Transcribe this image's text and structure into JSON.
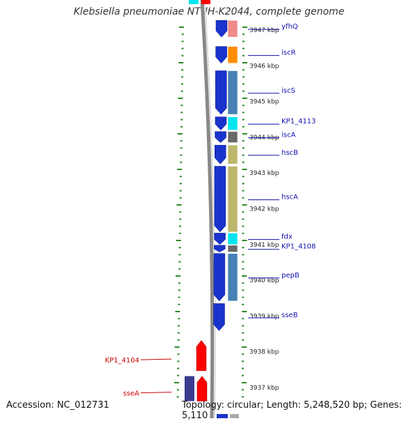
{
  "title": "Klebsiella pneumoniae NTUH-K2044, complete genome",
  "footer": {
    "accession": "Accession: NC_012731",
    "summary": "Topology: circular; Length: 5,248,520 bp; Genes: 5,110"
  },
  "colors": {
    "blue_gene": "#1a33cc",
    "red_gene": "#ff0000",
    "gene_label_blue": "#1010b0",
    "gene_label_red": "#cc0000",
    "tick": "#2a8a2a",
    "backbone": "#888888"
  },
  "scale": {
    "unit": "kbp",
    "ticks": [
      {
        "kbp": 3947,
        "label": "3947 kbp"
      },
      {
        "kbp": 3946,
        "label": "3946 kbp"
      },
      {
        "kbp": 3945,
        "label": "3945 kbp"
      },
      {
        "kbp": 3944,
        "label": "3944 kbp"
      },
      {
        "kbp": 3943,
        "label": "3943 kbp"
      },
      {
        "kbp": 3942,
        "label": "3942 kbp"
      },
      {
        "kbp": 3941,
        "label": "3941 kbp"
      },
      {
        "kbp": 3940,
        "label": "3940 kbp"
      },
      {
        "kbp": 3939,
        "label": "3939 kbp"
      },
      {
        "kbp": 3938,
        "label": "3938 kbp"
      },
      {
        "kbp": 3937,
        "label": "3937 kbp"
      }
    ]
  },
  "genes_blue": [
    {
      "name": "yfhQ",
      "start": 3947.25,
      "end": 3946.78,
      "cog": "#f08b8b"
    },
    {
      "name": "iscR",
      "start": 3946.52,
      "end": 3946.05,
      "cog": "#ff8c00"
    },
    {
      "name": "iscS",
      "start": 3945.84,
      "end": 3944.62,
      "cog": "#4682b4"
    },
    {
      "name": "KP1_4113",
      "start": 3944.55,
      "end": 3944.18,
      "cog": "#00e5ee"
    },
    {
      "name": "iscA",
      "start": 3944.14,
      "end": 3943.83,
      "cog": "#696969"
    },
    {
      "name": "hscB",
      "start": 3943.76,
      "end": 3943.23,
      "cog": "#bdb76b"
    },
    {
      "name": "hscA",
      "start": 3943.17,
      "end": 3941.33,
      "cog": "#bdb76b"
    },
    {
      "name": "fdx",
      "start": 3941.3,
      "end": 3940.98,
      "cog": "#00e5ee"
    },
    {
      "name": "KP1_4108",
      "start": 3940.96,
      "end": 3940.77,
      "cog": "#696969"
    },
    {
      "name": "pepB",
      "start": 3940.73,
      "end": 3939.4,
      "cog": "#4682b4"
    },
    {
      "name": "sseB",
      "start": 3939.33,
      "end": 3938.57,
      "cog": ""
    }
  ],
  "genes_red": [
    {
      "name": "KP1_4104",
      "start": 3937.45,
      "end": 3938.3
    },
    {
      "name": "sseA",
      "start": 3936.6,
      "end": 3937.3
    }
  ]
}
